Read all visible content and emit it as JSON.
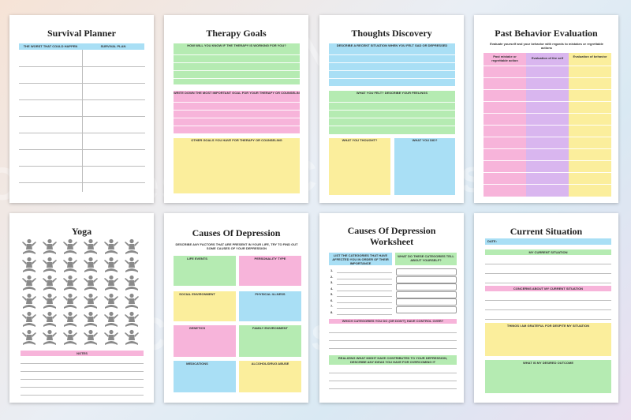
{
  "watermark": "CraftNest",
  "pages": {
    "survival": {
      "title": "Survival Planner",
      "col1": "THE WORST THAT COULD HAPPEN",
      "col2": "SURVIVAL PLAN"
    },
    "therapy": {
      "title": "Therapy Goals",
      "q1": "HOW WILL YOU KNOW IF THE THERAPY IS WORKING FOR YOU?",
      "q2": "WRITE DOWN THE MOST IMPORTANT GOAL FOR YOUR THERAPY OR COUNSELING",
      "q3": "OTHER GOALS YOU HAVE FOR THERAPY OR COUNSELING"
    },
    "thoughts": {
      "title": "Thoughts Discovery",
      "q1": "DESCRIBE A RECENT SITUATION WHEN YOU FELT SAD OR DEPRESSED",
      "q2": "WHAT YOU FELT? DESCRIBE YOUR FEELINGS",
      "q3": "WHAT YOU THOUGHT?",
      "q4": "WHAT YOU DID?"
    },
    "past": {
      "title": "Past Behavior Evaluation",
      "intro": "Evaluate yourself and your behavior with regards to mistakes or regrettable actions",
      "c1": "Past mistake or regrettable action",
      "c2": "Evaluation of the self",
      "c3": "Evaluation of behavior"
    },
    "yoga": {
      "title": "Yoga",
      "notes": "NOTES"
    },
    "causes": {
      "title": "Causes Of Depression",
      "intro": "DESCRIBE ANY FACTORS THAT ARE PRESENT IN YOUR LIFE, TRY TO FIND OUT SOME CAUSES OF YOUR DEPRESSION",
      "a": "LIFE EVENTS",
      "b": "PERSONALITY TYPE",
      "c": "SOCIAL ENVIRONMENT",
      "d": "PHYSICAL ILLNESS",
      "e": "GENETICS",
      "f": "FAMILY ENVIRONMENT",
      "g": "MEDICATIONS",
      "h": "ALCOHOL/DRUG ABUSE"
    },
    "worksheet": {
      "title1": "Causes Of Depression",
      "title2": "Worksheet",
      "left": "LIST THE CATEGORIES THAT HAVE AFFECTED YOU IN ORDER OF THEIR IMPORTANCE",
      "right": "WHAT DO THESE CATEGORIES TELL ABOUT YOURSELF?",
      "nums": [
        "1.",
        "2.",
        "3.",
        "4.",
        "5.",
        "6.",
        "7.",
        "8."
      ],
      "q2": "WHICH CATEGORIES YOU DO (OR DON'T) HAVE CONTROL OVER?",
      "q3": "REALIZING WHAT MIGHT HAVE CONTRIBUTED TO YOUR DEPRESSION, DESCRIBE ANY IDEAS YOU HAVE FOR OVERCOMING IT"
    },
    "current": {
      "title": "Current Situation",
      "date": "DATE:",
      "q1": "MY CURRENT SITUATION",
      "q2": "CONCERNS ABOUT MY CURRENT SITUATION",
      "q3": "THINGS I AM GRATEFUL FOR DESPITE MY SITUATION",
      "q4": "WHAT IS MY DESIRED OUTCOME"
    }
  }
}
